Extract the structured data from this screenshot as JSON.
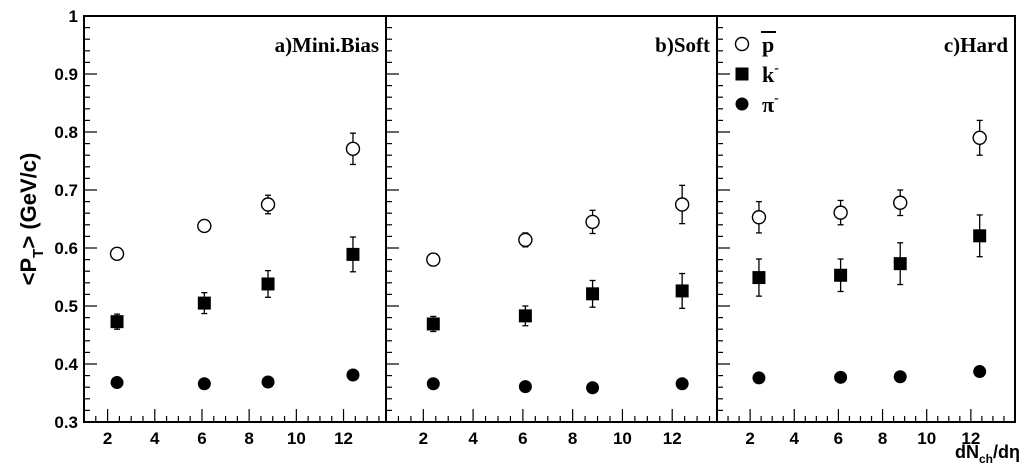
{
  "chart_data": {
    "type": "scatter",
    "ylabel": "<P_T> (GeV/c)",
    "xlabel": "dN_ch/dη",
    "ylim": [
      0.3,
      1.0
    ],
    "y_ticks": [
      "0.3",
      "0.4",
      "0.5",
      "0.6",
      "0.7",
      "0.8",
      "0.9",
      "1"
    ],
    "x_ticks": [
      "2",
      "4",
      "6",
      "8",
      "10",
      "12"
    ],
    "grid": false,
    "legend": {
      "placement": "top-left of panel c",
      "entries": [
        {
          "series": "pbar",
          "label": "p",
          "overline": true,
          "marker": "open-circle"
        },
        {
          "series": "kminus",
          "label": "k",
          "sup": "-",
          "marker": "filled-square"
        },
        {
          "series": "piminus",
          "label": "π",
          "sup": "-",
          "marker": "filled-circle"
        }
      ]
    },
    "panels": [
      {
        "title": "a)Mini.Bias",
        "xlim": [
          1.0,
          13.8
        ],
        "series": [
          {
            "key": "pbar",
            "marker": "open-circle",
            "points": [
              {
                "x": 2.4,
                "y": 0.59,
                "err": 0.0
              },
              {
                "x": 6.1,
                "y": 0.638,
                "err": 0.01
              },
              {
                "x": 8.8,
                "y": 0.675,
                "err": 0.016
              },
              {
                "x": 12.4,
                "y": 0.771,
                "err": 0.027
              }
            ]
          },
          {
            "key": "kminus",
            "marker": "filled-square",
            "points": [
              {
                "x": 2.4,
                "y": 0.473,
                "err": 0.013
              },
              {
                "x": 6.1,
                "y": 0.505,
                "err": 0.018
              },
              {
                "x": 8.8,
                "y": 0.538,
                "err": 0.023
              },
              {
                "x": 12.4,
                "y": 0.589,
                "err": 0.03
              }
            ]
          },
          {
            "key": "piminus",
            "marker": "filled-circle",
            "points": [
              {
                "x": 2.4,
                "y": 0.368,
                "err": 0.0
              },
              {
                "x": 6.1,
                "y": 0.366,
                "err": 0.0
              },
              {
                "x": 8.8,
                "y": 0.369,
                "err": 0.0
              },
              {
                "x": 12.4,
                "y": 0.381,
                "err": 0.0
              }
            ]
          }
        ]
      },
      {
        "title": "b)Soft",
        "xlim": [
          0.5,
          13.8
        ],
        "series": [
          {
            "key": "pbar",
            "marker": "open-circle",
            "points": [
              {
                "x": 2.4,
                "y": 0.58,
                "err": 0.0
              },
              {
                "x": 6.1,
                "y": 0.614,
                "err": 0.012
              },
              {
                "x": 8.8,
                "y": 0.645,
                "err": 0.02
              },
              {
                "x": 12.4,
                "y": 0.675,
                "err": 0.033
              }
            ]
          },
          {
            "key": "kminus",
            "marker": "filled-square",
            "points": [
              {
                "x": 2.4,
                "y": 0.469,
                "err": 0.013
              },
              {
                "x": 6.1,
                "y": 0.483,
                "err": 0.017
              },
              {
                "x": 8.8,
                "y": 0.521,
                "err": 0.023
              },
              {
                "x": 12.4,
                "y": 0.526,
                "err": 0.03
              }
            ]
          },
          {
            "key": "piminus",
            "marker": "filled-circle",
            "points": [
              {
                "x": 2.4,
                "y": 0.366,
                "err": 0.0
              },
              {
                "x": 6.1,
                "y": 0.361,
                "err": 0.0
              },
              {
                "x": 8.8,
                "y": 0.359,
                "err": 0.0
              },
              {
                "x": 12.4,
                "y": 0.366,
                "err": 0.0
              }
            ]
          }
        ]
      },
      {
        "title": "c)Hard",
        "xlim": [
          0.5,
          14.0
        ],
        "series": [
          {
            "key": "pbar",
            "marker": "open-circle",
            "points": [
              {
                "x": 2.4,
                "y": 0.653,
                "err": 0.027
              },
              {
                "x": 6.1,
                "y": 0.661,
                "err": 0.021
              },
              {
                "x": 8.8,
                "y": 0.678,
                "err": 0.022
              },
              {
                "x": 12.4,
                "y": 0.79,
                "err": 0.03
              }
            ]
          },
          {
            "key": "kminus",
            "marker": "filled-square",
            "points": [
              {
                "x": 2.4,
                "y": 0.549,
                "err": 0.032
              },
              {
                "x": 6.1,
                "y": 0.553,
                "err": 0.028
              },
              {
                "x": 8.8,
                "y": 0.573,
                "err": 0.036
              },
              {
                "x": 12.4,
                "y": 0.621,
                "err": 0.036
              }
            ]
          },
          {
            "key": "piminus",
            "marker": "filled-circle",
            "points": [
              {
                "x": 2.4,
                "y": 0.376,
                "err": 0.0
              },
              {
                "x": 6.1,
                "y": 0.377,
                "err": 0.0
              },
              {
                "x": 8.8,
                "y": 0.378,
                "err": 0.0
              },
              {
                "x": 12.4,
                "y": 0.387,
                "err": 0.0
              }
            ]
          }
        ]
      }
    ]
  }
}
